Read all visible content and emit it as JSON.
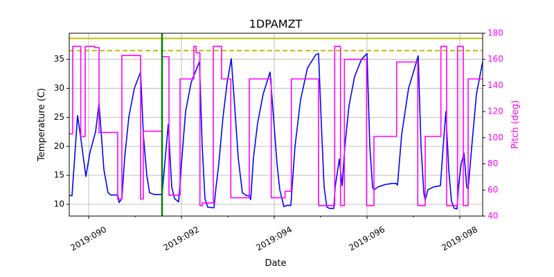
{
  "chart_data": {
    "type": "line",
    "title": "1DPAMZT",
    "xlabel": "Date",
    "ylabel": "Temperature (C)",
    "y2label": "Pitch (deg)",
    "xlim": [
      89.582,
      98.493
    ],
    "ylim": [
      7.97,
      39.5
    ],
    "y2lim": [
      40,
      180
    ],
    "grid": true,
    "x_ticks": [
      {
        "value": 90,
        "label": "2019:090"
      },
      {
        "value": 92,
        "label": "2019:092"
      },
      {
        "value": 94,
        "label": "2019:094"
      },
      {
        "value": 96,
        "label": "2019:096"
      },
      {
        "value": 98,
        "label": "2019:098"
      }
    ],
    "x_minor_ticks": [
      91,
      93,
      95,
      97
    ],
    "y_ticks": [
      10,
      15,
      20,
      25,
      30,
      35
    ],
    "y2_ticks": [
      40,
      60,
      80,
      100,
      120,
      140,
      160,
      180
    ],
    "colors": {
      "temperature": "#0000ff",
      "pitch": "#ff00ff",
      "limit": "#bfbf00",
      "marker": "#008000",
      "y2axis": "#ff00ff"
    },
    "hlines": [
      {
        "y": 38.6,
        "style": "solid"
      },
      {
        "y": 36.5,
        "style": "dashed"
      }
    ],
    "vline": {
      "x": 91.582
    },
    "series": [
      {
        "axis": "left",
        "x": [
          89.582,
          89.642,
          89.761,
          89.821,
          89.94,
          90.03,
          90.149,
          90.224,
          90.328,
          90.418,
          90.478,
          90.627,
          90.657,
          90.716,
          90.776,
          90.866,
          90.985,
          91.119,
          91.179,
          91.254,
          91.313,
          91.403,
          91.582,
          91.716,
          91.791,
          91.851,
          91.94,
          92.0,
          92.09,
          92.209,
          92.388,
          92.448,
          92.507,
          92.567,
          92.701,
          92.746,
          92.806,
          92.896,
          92.985,
          93.075,
          93.164,
          93.224,
          93.313,
          93.403,
          93.463,
          93.493,
          93.552,
          93.642,
          93.761,
          93.91,
          93.985,
          94.06,
          94.119,
          94.209,
          94.269,
          94.358,
          94.448,
          94.567,
          94.716,
          94.896,
          94.955,
          95.015,
          95.075,
          95.134,
          95.194,
          95.284,
          95.313,
          95.403,
          95.463,
          95.522,
          95.612,
          95.731,
          95.881,
          96.0,
          96.06,
          96.119,
          96.149,
          96.239,
          96.388,
          96.537,
          96.627,
          96.657,
          96.746,
          96.896,
          97.045,
          97.104,
          97.164,
          97.224,
          97.254,
          97.313,
          97.433,
          97.582,
          97.642,
          97.701,
          97.761,
          97.821,
          97.881,
          97.94,
          97.97,
          98.03,
          98.09,
          98.149,
          98.179,
          98.269,
          98.358,
          98.493
        ],
        "y": [
          11.5,
          11.5,
          25.3,
          22,
          14.8,
          19,
          22.5,
          27.4,
          16,
          12,
          11.6,
          11.6,
          10.3,
          11,
          18,
          25,
          30,
          32.8,
          22,
          15,
          12,
          11.7,
          11.7,
          23.8,
          13,
          11,
          10.4,
          17,
          26,
          31,
          34.6,
          20,
          11,
          9.5,
          9.4,
          13,
          17,
          25,
          31,
          35.1,
          25,
          18,
          12,
          11.5,
          11.5,
          10.8,
          18,
          24,
          29,
          32.8,
          25,
          17,
          12.5,
          9.6,
          9.8,
          9.8,
          20,
          28,
          33.5,
          35.8,
          36,
          24,
          13,
          9.5,
          9.3,
          9.3,
          13,
          17.8,
          13.2,
          20,
          27,
          32,
          35,
          36,
          20,
          13,
          12.5,
          13,
          13.4,
          13.6,
          13.6,
          13.3,
          22,
          30,
          34,
          35.6,
          20,
          12,
          10.7,
          12.5,
          13,
          13.2,
          20,
          26,
          16,
          10.5,
          9.3,
          9.2,
          13,
          17,
          18.8,
          13,
          12.6,
          21,
          29,
          34.6
        ]
      },
      {
        "axis": "right",
        "step": "post",
        "x": [
          89.582,
          89.657,
          89.831,
          89.925,
          90.13,
          90.224,
          90.627,
          90.716,
          91.119,
          91.179,
          91.582,
          91.731,
          91.97,
          92.269,
          92.318,
          92.399,
          92.452,
          92.687,
          92.866,
          93.064,
          93.463,
          93.936,
          94.234,
          94.369,
          94.955,
          95.303,
          95.428,
          95.512,
          95.99,
          96.149,
          96.637,
          97.094,
          97.254,
          97.593,
          97.716,
          97.951,
          98.075,
          98.179,
          98.493
        ],
        "y": [
          103,
          170,
          101,
          170,
          169,
          104,
          53,
          163,
          53,
          105,
          162,
          56,
          145,
          170,
          165,
          48,
          50,
          170,
          145,
          54,
          145,
          54,
          59,
          145,
          48,
          170,
          48,
          160,
          48,
          101,
          158,
          48,
          101,
          170,
          48,
          170,
          48,
          145,
          145
        ]
      }
    ]
  }
}
